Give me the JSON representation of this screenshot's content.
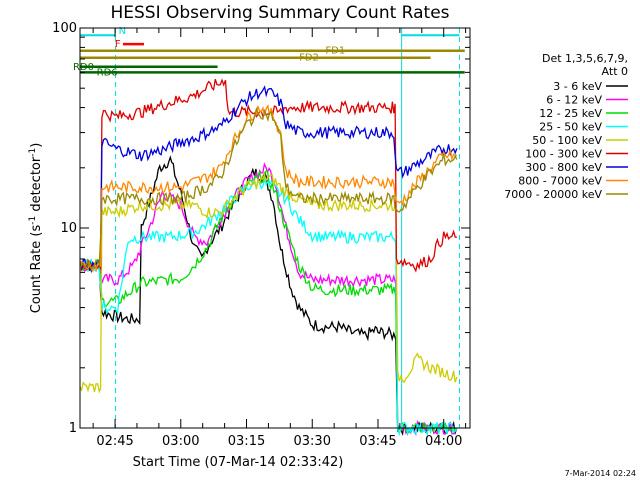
{
  "chart_data": {
    "type": "line",
    "title": "HESSI Observing Summary Count Rates",
    "xlabel": "Start Time (07-Mar-14 02:33:42)",
    "ylabel_main": "Count Rate (s",
    "ylabel_sup": "-1",
    "ylabel_tail": " detector",
    "ylabel_sup2": "-1",
    "ylabel_end": ")",
    "yscale": "log",
    "ylim": [
      1,
      100
    ],
    "xlim": [
      2.6167,
      4.1
    ],
    "y_ticklabels": [
      {
        "v": 100,
        "t": "100"
      },
      {
        "v": 10,
        "t": "10"
      },
      {
        "v": 1,
        "t": "1"
      }
    ],
    "x_ticklabels": [
      {
        "v": 2.75,
        "t": "02:45"
      },
      {
        "v": 3.0,
        "t": "03:00"
      },
      {
        "v": 3.25,
        "t": "03:15"
      },
      {
        "v": 3.5,
        "t": "03:30"
      },
      {
        "v": 3.75,
        "t": "03:45"
      },
      {
        "v": 4.0,
        "t": "04:00"
      }
    ],
    "legend_header": [
      "Det 1,3,5,6,7,9,",
      "Att 0"
    ],
    "legend_placement": "right",
    "series": [
      {
        "name": "3 - 6 keV",
        "color": "#000000",
        "x": [
          2.6167,
          2.69,
          2.7,
          2.76,
          2.8,
          2.85,
          2.92,
          2.96,
          3.0,
          3.05,
          3.08,
          3.1,
          3.15,
          3.2,
          3.25,
          3.28,
          3.32,
          3.35,
          3.38,
          3.42,
          3.45,
          3.5,
          3.55,
          3.6,
          3.65,
          3.7,
          3.74,
          3.75,
          3.78,
          3.81,
          3.825,
          3.85,
          3.9,
          3.95,
          4.0,
          4.05
        ],
        "y": [
          6.5,
          6.5,
          3.8,
          3.6,
          3.5,
          10,
          20,
          22,
          15,
          8,
          7,
          8,
          10,
          13,
          17,
          19,
          18,
          14,
          8,
          5,
          4,
          3.3,
          3.2,
          3.2,
          3.0,
          2.9,
          3.1,
          3.0,
          3.0,
          2.9,
          1.0,
          1.0,
          1.0,
          1.0,
          1.0,
          1.0
        ]
      },
      {
        "name": "6 - 12 keV",
        "color": "#ff00ff",
        "x": [
          2.6167,
          2.69,
          2.7,
          2.76,
          2.82,
          2.88,
          2.93,
          3.0,
          3.05,
          3.1,
          3.15,
          3.2,
          3.25,
          3.3,
          3.33,
          3.36,
          3.4,
          3.45,
          3.5,
          3.55,
          3.6,
          3.65,
          3.7,
          3.75,
          3.8,
          3.81,
          3.825,
          3.85,
          3.9,
          4.0,
          4.05
        ],
        "y": [
          6.5,
          6.5,
          5.5,
          5.5,
          6.5,
          10,
          15,
          13,
          9,
          8.5,
          11,
          14,
          17,
          19,
          20,
          17,
          10,
          6,
          5.5,
          5.5,
          5.5,
          5.5,
          5.5,
          5.5,
          5.5,
          5.5,
          1.0,
          1.0,
          1.0,
          1.0,
          1.0
        ]
      },
      {
        "name": "12 - 25 keV",
        "color": "#00dd00",
        "x": [
          2.6167,
          2.69,
          2.7,
          2.76,
          2.85,
          2.95,
          3.0,
          3.05,
          3.1,
          3.15,
          3.2,
          3.25,
          3.3,
          3.33,
          3.36,
          3.4,
          3.45,
          3.5,
          3.55,
          3.6,
          3.65,
          3.7,
          3.75,
          3.8,
          3.81,
          3.825,
          3.85,
          3.9,
          4.0,
          4.05
        ],
        "y": [
          6.5,
          6.5,
          4.3,
          4.3,
          5.3,
          5.5,
          5.6,
          6.5,
          8,
          11,
          14,
          16,
          18,
          18,
          15,
          10,
          6.5,
          5,
          4.9,
          4.9,
          4.9,
          4.9,
          4.9,
          4.9,
          4.9,
          1.0,
          1.0,
          1.0,
          1.0,
          1.0
        ]
      },
      {
        "name": "25 - 50 keV",
        "color": "#00ffff",
        "x": [
          2.6167,
          2.69,
          2.7,
          2.76,
          2.8,
          2.85,
          2.9,
          2.95,
          3.0,
          3.05,
          3.1,
          3.15,
          3.2,
          3.25,
          3.3,
          3.35,
          3.4,
          3.45,
          3.5,
          3.55,
          3.6,
          3.65,
          3.7,
          3.75,
          3.8,
          3.81,
          3.825,
          3.85,
          3.9,
          4.0,
          4.05
        ],
        "y": [
          6.5,
          6.5,
          4.0,
          4.0,
          8.8,
          9.0,
          9.0,
          9.0,
          9.2,
          9.5,
          10.5,
          12,
          14,
          16,
          17,
          16,
          14,
          11,
          9.2,
          9.0,
          9.0,
          9.0,
          9.0,
          9.0,
          9.0,
          9.0,
          1.0,
          1.0,
          1.0,
          1.0,
          1.0
        ]
      },
      {
        "name": "50 - 100 keV",
        "color": "#cccc00",
        "x": [
          2.6167,
          2.69,
          2.7,
          2.76,
          2.8,
          2.85,
          2.9,
          2.95,
          3.0,
          3.05,
          3.1,
          3.15,
          3.2,
          3.25,
          3.3,
          3.33,
          3.36,
          3.4,
          3.45,
          3.5,
          3.55,
          3.6,
          3.65,
          3.7,
          3.75,
          3.8,
          3.81,
          3.825,
          3.85,
          3.9,
          3.95,
          4.0,
          4.05
        ],
        "y": [
          1.6,
          1.6,
          12,
          12,
          12.5,
          13,
          13,
          13,
          13,
          13,
          12,
          12,
          14,
          16,
          17,
          18,
          17,
          15,
          14,
          13,
          13,
          13,
          13,
          13,
          13,
          13,
          13,
          1.8,
          1.8,
          2.2,
          2.0,
          1.9,
          1.8
        ]
      },
      {
        "name": "100 - 300 keV",
        "color": "#dd0000",
        "x": [
          2.6167,
          2.69,
          2.7,
          2.75,
          2.8,
          2.85,
          2.9,
          2.95,
          3.0,
          3.05,
          3.1,
          3.15,
          3.17,
          3.18,
          3.25,
          3.35,
          3.38,
          3.4,
          3.45,
          3.5,
          3.55,
          3.6,
          3.65,
          3.7,
          3.75,
          3.8,
          3.81,
          3.82,
          3.9,
          3.95,
          3.97,
          4.0,
          4.05
        ],
        "y": [
          6.5,
          6.5,
          38,
          36,
          37,
          38,
          40,
          42,
          44,
          46,
          50,
          53,
          56,
          38,
          38,
          38,
          38,
          40,
          40,
          40,
          40,
          40,
          40,
          40,
          40,
          40,
          40,
          7,
          6.5,
          7,
          8,
          9,
          9
        ]
      },
      {
        "name": "300 - 800 keV",
        "color": "#0000dd",
        "x": [
          2.6167,
          2.69,
          2.7,
          2.75,
          2.8,
          2.85,
          2.9,
          2.95,
          3.0,
          3.05,
          3.1,
          3.15,
          3.2,
          3.25,
          3.3,
          3.35,
          3.38,
          3.4,
          3.45,
          3.5,
          3.55,
          3.6,
          3.65,
          3.7,
          3.75,
          3.8,
          3.81,
          3.82,
          3.85,
          3.9,
          3.95,
          4.0,
          4.05
        ],
        "y": [
          6.5,
          6.5,
          27,
          25,
          24,
          23,
          24,
          25,
          27,
          28,
          30,
          32,
          38,
          44,
          48,
          47,
          42,
          33,
          30,
          30,
          30,
          30,
          30,
          30,
          30,
          30,
          30,
          19,
          19,
          21,
          23,
          25,
          25
        ]
      },
      {
        "name": "800 - 7000 keV",
        "color": "#ff8800",
        "x": [
          2.6167,
          2.69,
          2.7,
          2.75,
          2.8,
          2.85,
          2.9,
          2.95,
          3.0,
          3.05,
          3.1,
          3.15,
          3.2,
          3.25,
          3.3,
          3.35,
          3.38,
          3.4,
          3.45,
          3.5,
          3.55,
          3.6,
          3.65,
          3.7,
          3.75,
          3.8,
          3.81,
          3.82,
          3.85,
          3.9,
          3.95,
          4.0,
          4.05
        ],
        "y": [
          6.5,
          6.5,
          16,
          16,
          16,
          16,
          16,
          16,
          16,
          17,
          18,
          20,
          27,
          35,
          40,
          37,
          30,
          19,
          17,
          17,
          17,
          17,
          17,
          17,
          17,
          17,
          17,
          13,
          14,
          17,
          20,
          23,
          23
        ]
      },
      {
        "name": "7000 - 20000 keV",
        "color": "#998800",
        "x": [
          2.6167,
          2.69,
          2.7,
          2.75,
          2.8,
          2.85,
          2.9,
          2.95,
          3.0,
          3.05,
          3.1,
          3.15,
          3.2,
          3.25,
          3.3,
          3.35,
          3.38,
          3.4,
          3.45,
          3.5,
          3.55,
          3.6,
          3.65,
          3.7,
          3.75,
          3.8,
          3.81,
          3.82,
          3.85,
          3.9,
          3.95,
          4.0,
          4.05
        ],
        "y": [
          6.5,
          6.5,
          14,
          14,
          14,
          14,
          14,
          14,
          14,
          15,
          16,
          18,
          25,
          33,
          38,
          36,
          28,
          16,
          14,
          14,
          14,
          14,
          14,
          14,
          14,
          14,
          14,
          12,
          13,
          16,
          19,
          22,
          22
        ]
      }
    ],
    "annotations": [
      {
        "label": "N",
        "color": "#00dddd",
        "y": 92,
        "x0": 2.6167,
        "x1": 2.752,
        "x2": 3.84,
        "x3": 4.06
      },
      {
        "label": "F",
        "color": "#ff0000",
        "y": 83,
        "x0": 2.78,
        "x1": 2.86
      },
      {
        "label": "FD1",
        "color": "#998800",
        "y": 77,
        "x0": 2.6167,
        "x1": 4.08,
        "labelx": 3.55
      },
      {
        "label": "FD2",
        "color": "#998800",
        "y": 71,
        "x0": 2.6167,
        "x1": 3.95,
        "labelx": 3.45
      },
      {
        "label": "RD0",
        "color": "#006600",
        "y": 64,
        "x0": 2.6167,
        "x1": 3.14,
        "labelx": 2.59
      },
      {
        "label": "RD6",
        "color": "#006600",
        "y": 60,
        "x0": 2.6167,
        "x1": 4.08,
        "labelx": 2.68
      }
    ],
    "vlines": [
      {
        "x": 2.6167,
        "color": "#00dddd",
        "style": "solid"
      },
      {
        "x": 2.752,
        "color": "#00dddd",
        "style": "dash"
      },
      {
        "x": 3.84,
        "color": "#00dddd",
        "style": "solid"
      },
      {
        "x": 4.06,
        "color": "#00dddd",
        "style": "dash"
      }
    ],
    "timestamp": "7-Mar-2014 02:24"
  }
}
